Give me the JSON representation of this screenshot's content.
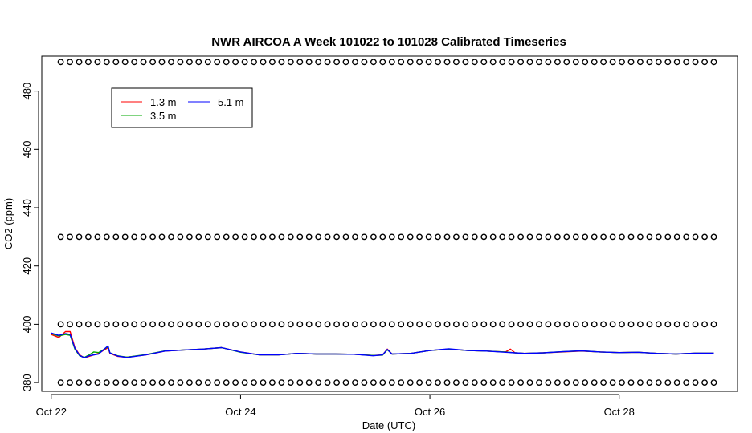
{
  "chart_data": {
    "type": "line",
    "title": "NWR AIRCOA A  Week 101022 to 101028  Calibrated Timeseries",
    "xlabel": "Date (UTC)",
    "ylabel": "CO2 (ppm)",
    "xlim": [
      -0.1,
      7.25
    ],
    "ylim": [
      377,
      492
    ],
    "x_ticks": [
      {
        "pos": 0,
        "label": "Oct 22"
      },
      {
        "pos": 2,
        "label": "Oct 24"
      },
      {
        "pos": 4,
        "label": "Oct 26"
      },
      {
        "pos": 6,
        "label": "Oct 28"
      }
    ],
    "y_ticks": [
      380,
      400,
      420,
      440,
      460,
      480
    ],
    "legend": {
      "placement": "top-left",
      "entries": [
        {
          "label": "1.3 m",
          "color": "#ff0000"
        },
        {
          "label": "3.5 m",
          "color": "#00aa00"
        },
        {
          "label": "5.1 m",
          "color": "#0000ff"
        }
      ]
    },
    "series": [
      {
        "name": "1.3 m",
        "color": "#ff0000",
        "x": [
          0.0,
          0.08,
          0.15,
          0.2,
          0.25,
          0.3,
          0.35,
          0.4,
          0.5,
          0.6,
          0.62,
          0.7,
          0.8,
          1.0,
          1.2,
          1.4,
          1.6,
          1.8,
          2.0,
          2.2,
          2.4,
          2.6,
          2.8,
          3.0,
          3.2,
          3.4,
          3.5,
          3.55,
          3.6,
          3.8,
          4.0,
          4.2,
          4.4,
          4.6,
          4.8,
          4.85,
          4.9,
          5.0,
          5.2,
          5.4,
          5.6,
          5.8,
          6.0,
          6.2,
          6.4,
          6.6,
          6.8,
          7.0
        ],
        "y": [
          396.5,
          395.5,
          397.5,
          397.5,
          392,
          389.5,
          388.5,
          389,
          390,
          392,
          390,
          389,
          388.7,
          389.5,
          390.8,
          391.2,
          391.5,
          392,
          390.5,
          389.5,
          389.5,
          390,
          389.8,
          389.8,
          389.7,
          389.3,
          389.5,
          391.5,
          389.8,
          390,
          391,
          391.5,
          391,
          390.8,
          390.5,
          391.5,
          390.2,
          390,
          390.2,
          390.5,
          390.8,
          390.5,
          390.3,
          390.4,
          390,
          389.8,
          390.1,
          390.1
        ]
      },
      {
        "name": "3.5 m",
        "color": "#00aa00",
        "x": [
          0.0,
          0.08,
          0.15,
          0.2,
          0.25,
          0.3,
          0.35,
          0.4,
          0.45,
          0.5,
          0.6,
          0.62,
          0.7,
          0.8,
          1.0,
          1.2,
          1.4,
          1.6,
          1.8,
          2.0,
          2.2,
          2.4,
          2.6,
          2.8,
          3.0,
          3.2,
          3.4,
          3.5,
          3.55,
          3.6,
          3.8,
          4.0,
          4.2,
          4.4,
          4.6,
          4.8,
          4.9,
          5.0,
          5.2,
          5.4,
          5.6,
          5.8,
          6.0,
          6.2,
          6.4,
          6.6,
          6.8,
          7.0
        ],
        "y": [
          396.8,
          396,
          396.5,
          396.2,
          391.5,
          389.2,
          388.6,
          389.5,
          390.5,
          390.3,
          392.3,
          390.2,
          389.2,
          388.7,
          389.6,
          390.9,
          391.2,
          391.5,
          392,
          390.4,
          389.5,
          389.5,
          390,
          389.8,
          389.8,
          389.7,
          389.3,
          389.4,
          391.3,
          389.8,
          390,
          391,
          391.5,
          391,
          390.8,
          390.5,
          390.2,
          390,
          390.2,
          390.6,
          390.9,
          390.5,
          390.3,
          390.4,
          390,
          389.8,
          390.1,
          390.1
        ]
      },
      {
        "name": "5.1 m",
        "color": "#0000ff",
        "x": [
          0.0,
          0.08,
          0.15,
          0.2,
          0.25,
          0.3,
          0.35,
          0.4,
          0.5,
          0.6,
          0.62,
          0.7,
          0.8,
          1.0,
          1.2,
          1.4,
          1.6,
          1.8,
          2.0,
          2.2,
          2.4,
          2.6,
          2.8,
          3.0,
          3.2,
          3.4,
          3.5,
          3.55,
          3.6,
          3.8,
          4.0,
          4.2,
          4.4,
          4.6,
          4.8,
          4.9,
          5.0,
          5.2,
          5.4,
          5.6,
          5.8,
          6.0,
          6.2,
          6.4,
          6.6,
          6.8,
          7.0
        ],
        "y": [
          397,
          396.2,
          396.8,
          396.5,
          391.8,
          389.3,
          388.5,
          389.2,
          389.8,
          392.6,
          390.2,
          389.1,
          388.6,
          389.5,
          390.8,
          391.2,
          391.5,
          392,
          390.5,
          389.5,
          389.5,
          390,
          389.8,
          389.8,
          389.7,
          389.2,
          389.5,
          391.4,
          389.8,
          390,
          391,
          391.6,
          391,
          390.8,
          390.4,
          390.2,
          390,
          390.2,
          390.6,
          390.9,
          390.5,
          390.3,
          390.4,
          390,
          389.8,
          390.1,
          390.1
        ]
      },
      {
        "name": "",
        "kind": "points",
        "color": "#000000",
        "x_start": 0.1,
        "x_end": 7.0,
        "count": 72,
        "levels": [
          490,
          430,
          400,
          380
        ]
      }
    ]
  }
}
